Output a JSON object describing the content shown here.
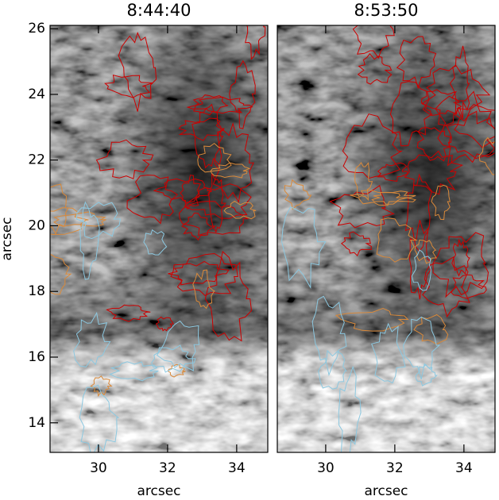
{
  "chart_data": [
    {
      "type": "image",
      "title": "8:44:40",
      "xlabel": "arcsec",
      "ylabel": "arcsec",
      "xlim": [
        28.6,
        34.9
      ],
      "ylim": [
        13.1,
        26.1
      ],
      "xticks": [
        30,
        32,
        34
      ],
      "yticks": [
        14,
        16,
        18,
        20,
        22,
        24,
        26
      ]
    },
    {
      "type": "image",
      "title": "8:53:50",
      "xlabel": "arcsec",
      "xlim": [
        28.6,
        34.9
      ],
      "ylim": [
        13.1,
        26.1
      ],
      "xticks": [
        30,
        32,
        34
      ]
    }
  ]
}
